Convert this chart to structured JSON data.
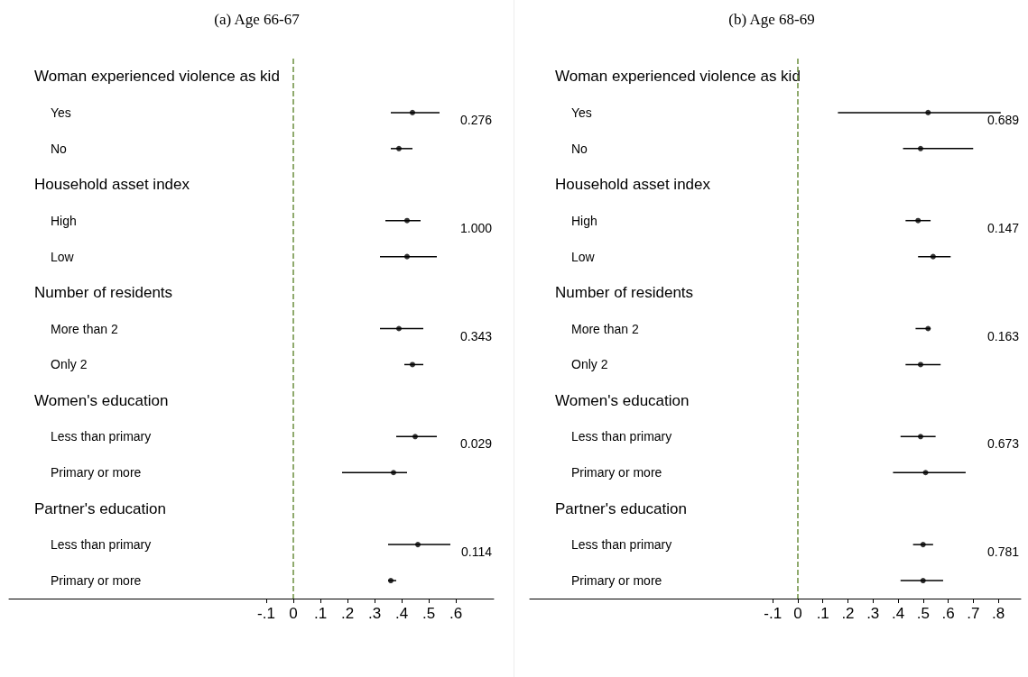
{
  "chart_data": [
    {
      "type": "scatter",
      "title": "(a) Age 66-67",
      "categories": [
        "Woman experienced violence as kid",
        "Yes",
        "No",
        "Household asset index",
        "High",
        "Low",
        "Number of residents",
        "More than 2",
        "Only 2",
        "Women's education",
        "Less than primary",
        "Primary or more",
        "Partner's education",
        "Less than primary",
        "Primary or more"
      ],
      "series": [
        {
          "color": "#000000",
          "values": [
            null,
            0.44,
            0.39,
            null,
            0.42,
            0.42,
            null,
            0.39,
            0.44,
            null,
            0.45,
            0.37,
            null,
            0.46,
            0.36
          ],
          "errors": [
            null,
            [
              0.36,
              0.54
            ],
            [
              0.36,
              0.44
            ],
            null,
            [
              0.34,
              0.47
            ],
            [
              0.32,
              0.53
            ],
            null,
            [
              0.32,
              0.48
            ],
            [
              0.41,
              0.48
            ],
            null,
            [
              0.38,
              0.53
            ],
            [
              0.18,
              0.42
            ],
            null,
            [
              0.35,
              0.58
            ],
            [
              0.35,
              0.38
            ]
          ]
        }
      ],
      "xlim": [
        -1.05,
        0.74
      ],
      "xticks": [
        {
          "value": -0.1,
          "label": "-.1"
        },
        0,
        {
          "value": 0.1,
          "label": ".1"
        },
        {
          "value": 0.2,
          "label": ".2"
        },
        {
          "value": 0.3,
          "label": ".3"
        },
        {
          "value": 0.4,
          "label": ".4"
        },
        {
          "value": 0.5,
          "label": ".5"
        },
        {
          "value": 0.6,
          "label": ".6"
        }
      ],
      "ref_lines": [
        {
          "axis": "x",
          "value": 0,
          "color": "#6b8f3e",
          "line_style": "dashed"
        }
      ],
      "annotations": [
        "0.276",
        "1.000",
        "0.343",
        "0.029",
        "0.114"
      ],
      "marker": "circle",
      "grid": false,
      "orientation": "horizontal"
    },
    {
      "type": "scatter",
      "title": "(b) Age 68-69",
      "categories": [
        "Woman experienced violence as kid",
        "Yes",
        "No",
        "Household asset index",
        "High",
        "Low",
        "Number of residents",
        "More than 2",
        "Only 2",
        "Women's education",
        "Less than primary",
        "Primary or more",
        "Partner's education",
        "Less than primary",
        "Primary or more"
      ],
      "series": [
        {
          "color": "#000000",
          "values": [
            null,
            0.52,
            0.49,
            null,
            0.48,
            0.54,
            null,
            0.52,
            0.49,
            null,
            0.49,
            0.51,
            null,
            0.5,
            0.5
          ],
          "errors": [
            null,
            [
              0.16,
              0.81
            ],
            [
              0.42,
              0.7
            ],
            null,
            [
              0.43,
              0.53
            ],
            [
              0.48,
              0.61
            ],
            null,
            [
              0.47,
              0.53
            ],
            [
              0.43,
              0.57
            ],
            null,
            [
              0.41,
              0.55
            ],
            [
              0.38,
              0.67
            ],
            null,
            [
              0.46,
              0.54
            ],
            [
              0.41,
              0.58
            ]
          ]
        }
      ],
      "xlim": [
        -1.07,
        0.89
      ],
      "xticks": [
        {
          "value": -0.1,
          "label": "-.1"
        },
        0,
        {
          "value": 0.1,
          "label": ".1"
        },
        {
          "value": 0.2,
          "label": ".2"
        },
        {
          "value": 0.3,
          "label": ".3"
        },
        {
          "value": 0.4,
          "label": ".4"
        },
        {
          "value": 0.5,
          "label": ".5"
        },
        {
          "value": 0.6,
          "label": ".6"
        },
        {
          "value": 0.7,
          "label": ".7"
        },
        {
          "value": 0.8,
          "label": ".8"
        }
      ],
      "ref_lines": [
        {
          "axis": "x",
          "value": 0,
          "color": "#6b8f3e",
          "line_style": "dashed"
        }
      ],
      "annotations": [
        "0.689",
        "0.147",
        "0.163",
        "0.673",
        "0.781"
      ],
      "marker": "circle",
      "grid": false,
      "orientation": "horizontal"
    }
  ]
}
